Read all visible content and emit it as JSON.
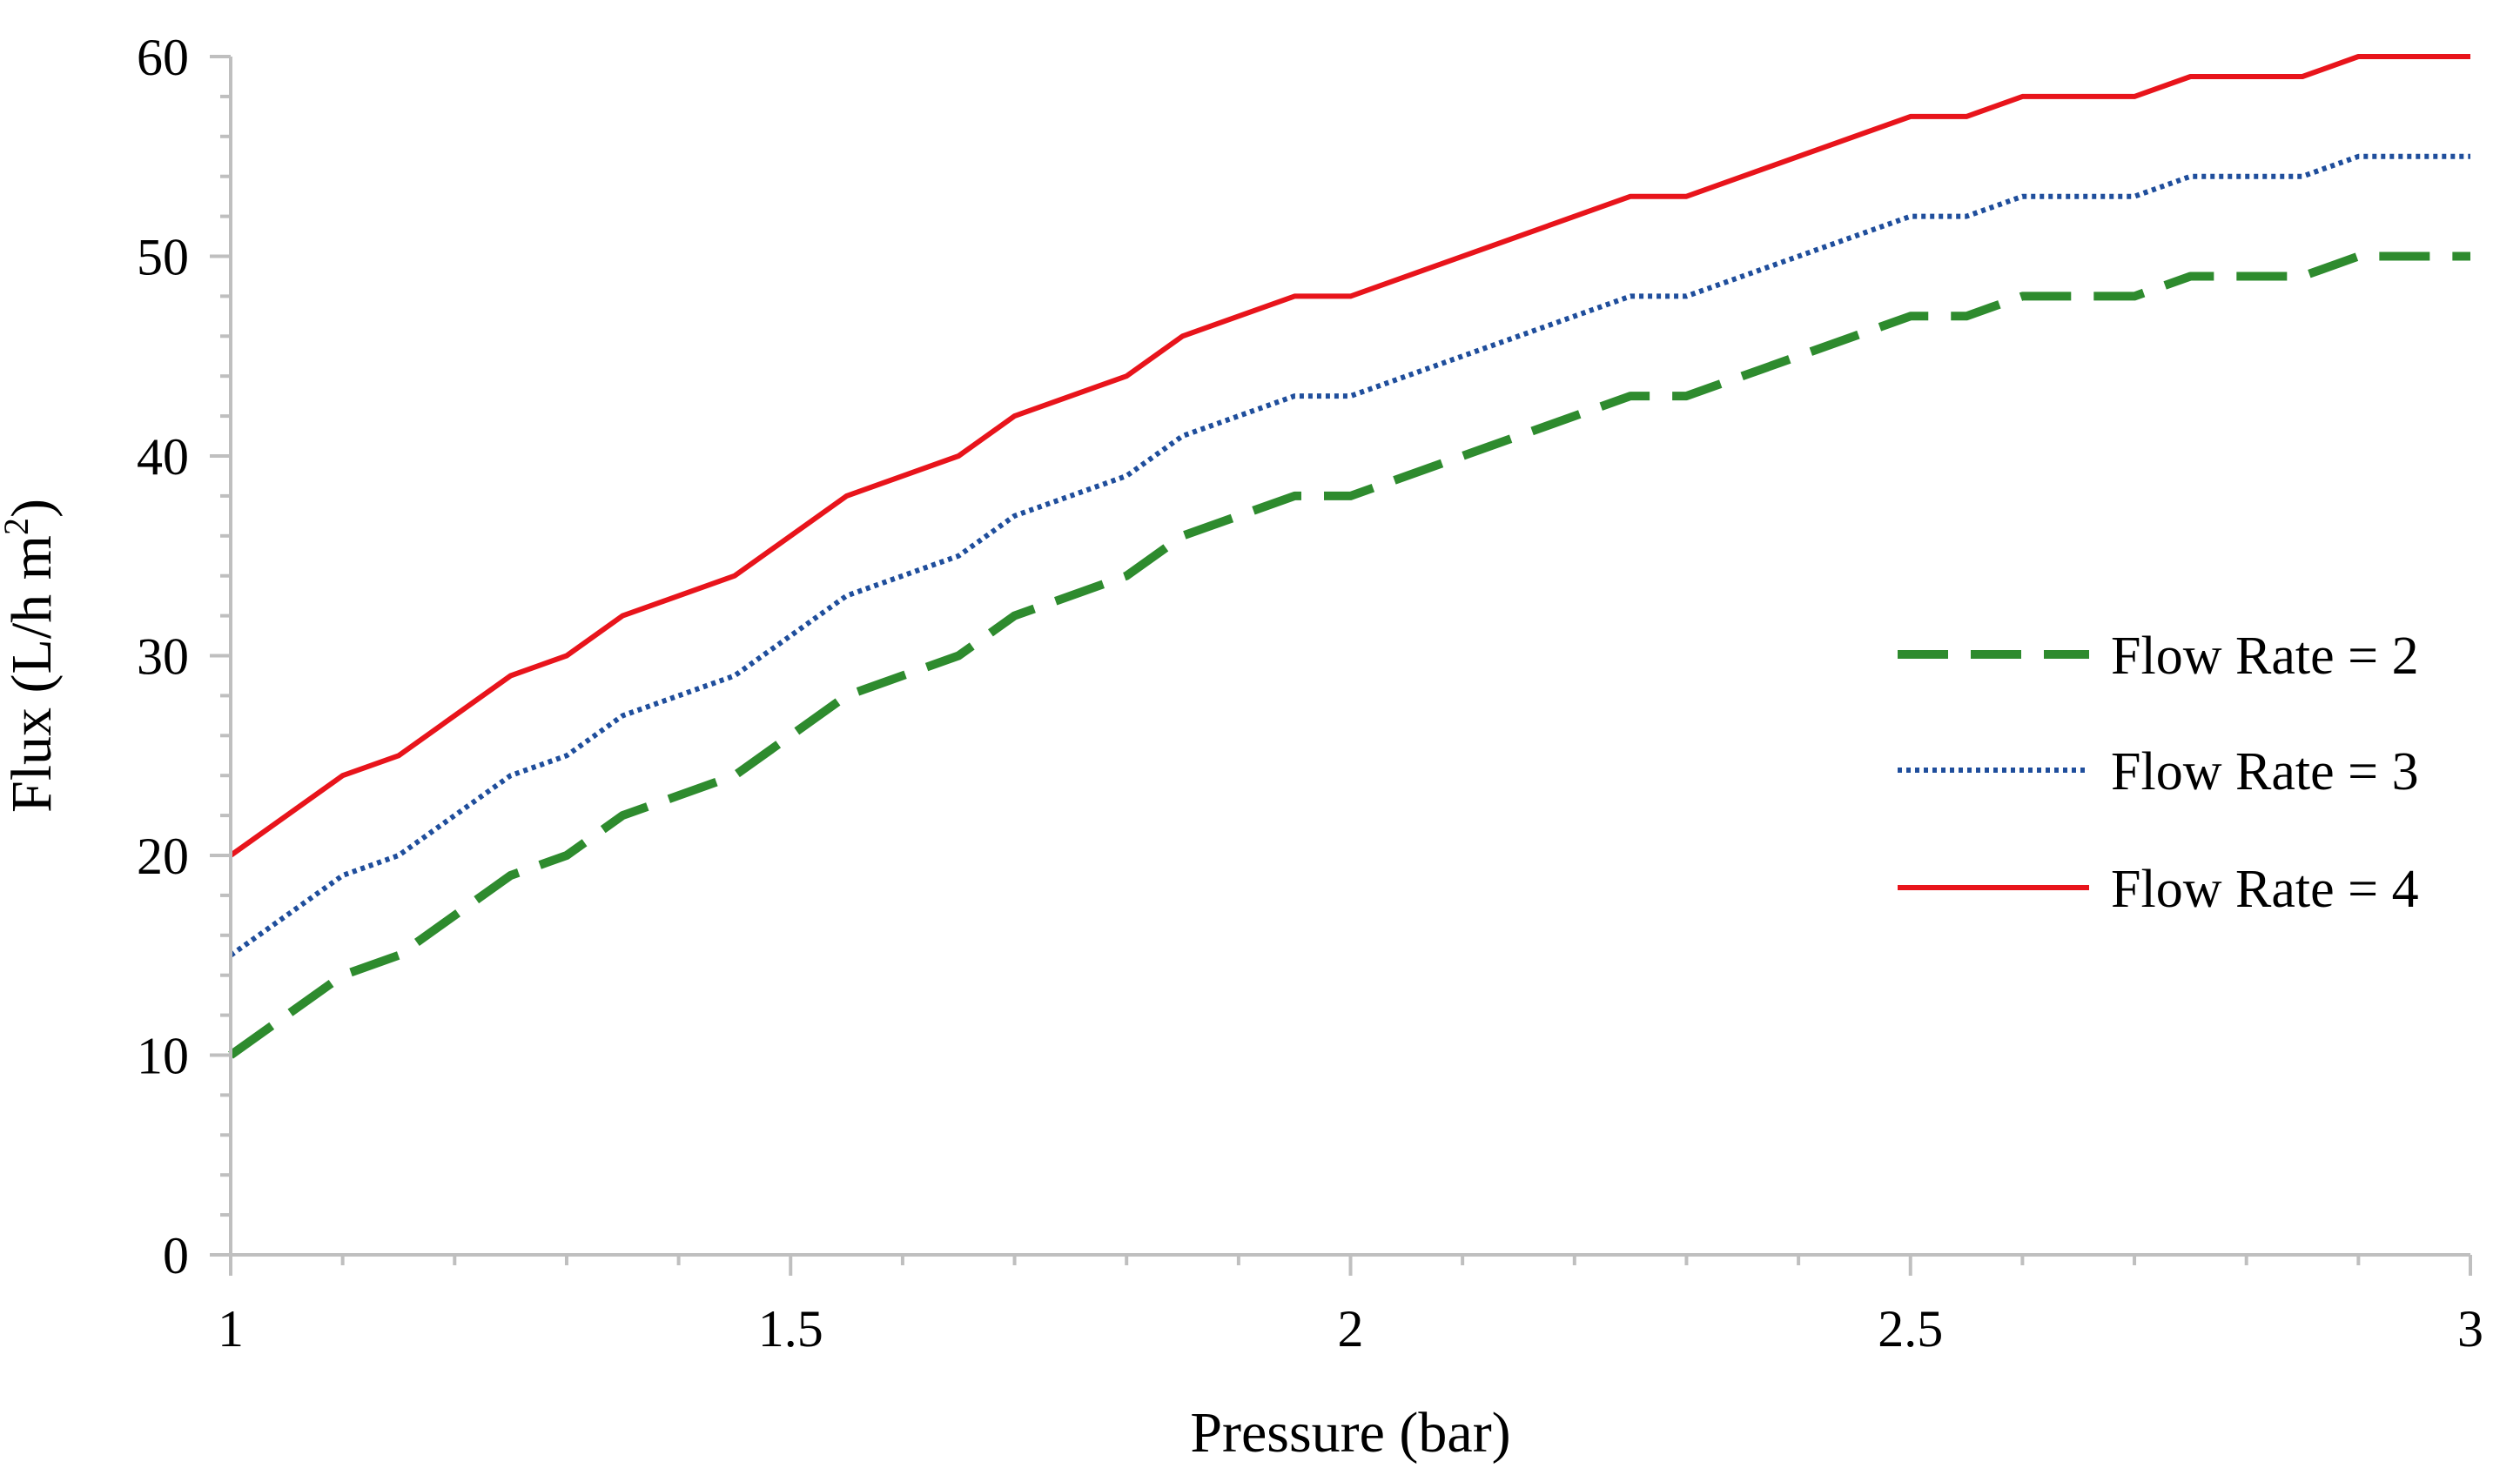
{
  "chart_data": {
    "type": "line",
    "title": "",
    "xlabel": "Pressure (bar)",
    "ylabel_main": "Flux (L/h m",
    "ylabel_sup": "2",
    "ylabel_tail": ")",
    "xlim": [
      1,
      3
    ],
    "ylim": [
      0,
      60
    ],
    "x_major_ticks": [
      1,
      1.5,
      2,
      2.5,
      3
    ],
    "x_tick_labels": [
      "1",
      "1.5",
      "2",
      "2.5",
      "3"
    ],
    "x_minor_step": 0.1,
    "y_major_ticks": [
      0,
      10,
      20,
      30,
      40,
      50,
      60
    ],
    "y_tick_labels": [
      "0",
      "10",
      "20",
      "30",
      "40",
      "50",
      "60"
    ],
    "y_minor_step": 2,
    "grid": false,
    "legend_position": "right",
    "x": [
      1,
      1.1,
      1.15,
      1.25,
      1.3,
      1.35,
      1.45,
      1.55,
      1.65,
      1.7,
      1.8,
      1.85,
      1.95,
      2,
      2.25,
      2.3,
      2.5,
      2.55,
      2.6,
      2.7,
      2.75,
      2.85,
      2.9,
      3
    ],
    "series": [
      {
        "name": "Flow Rate = 2",
        "color": "#2e8b2e",
        "style": "dashed",
        "values": [
          10,
          14,
          15,
          19,
          20,
          22,
          24,
          28,
          30,
          32,
          34,
          36,
          38,
          38,
          43,
          43,
          47,
          47,
          48,
          48,
          49,
          49,
          50,
          50
        ]
      },
      {
        "name": "Flow Rate = 3",
        "color": "#1f4e9c",
        "style": "dotted",
        "values": [
          15,
          19,
          20,
          24,
          25,
          27,
          29,
          33,
          35,
          37,
          39,
          41,
          43,
          43,
          48,
          48,
          52,
          52,
          53,
          53,
          54,
          54,
          55,
          55
        ]
      },
      {
        "name": "Flow Rate = 4",
        "color": "#e8141b",
        "style": "solid",
        "values": [
          20,
          24,
          25,
          29,
          30,
          32,
          34,
          38,
          40,
          42,
          44,
          46,
          48,
          48,
          53,
          53,
          57,
          57,
          58,
          58,
          59,
          59,
          60,
          60
        ]
      }
    ]
  }
}
